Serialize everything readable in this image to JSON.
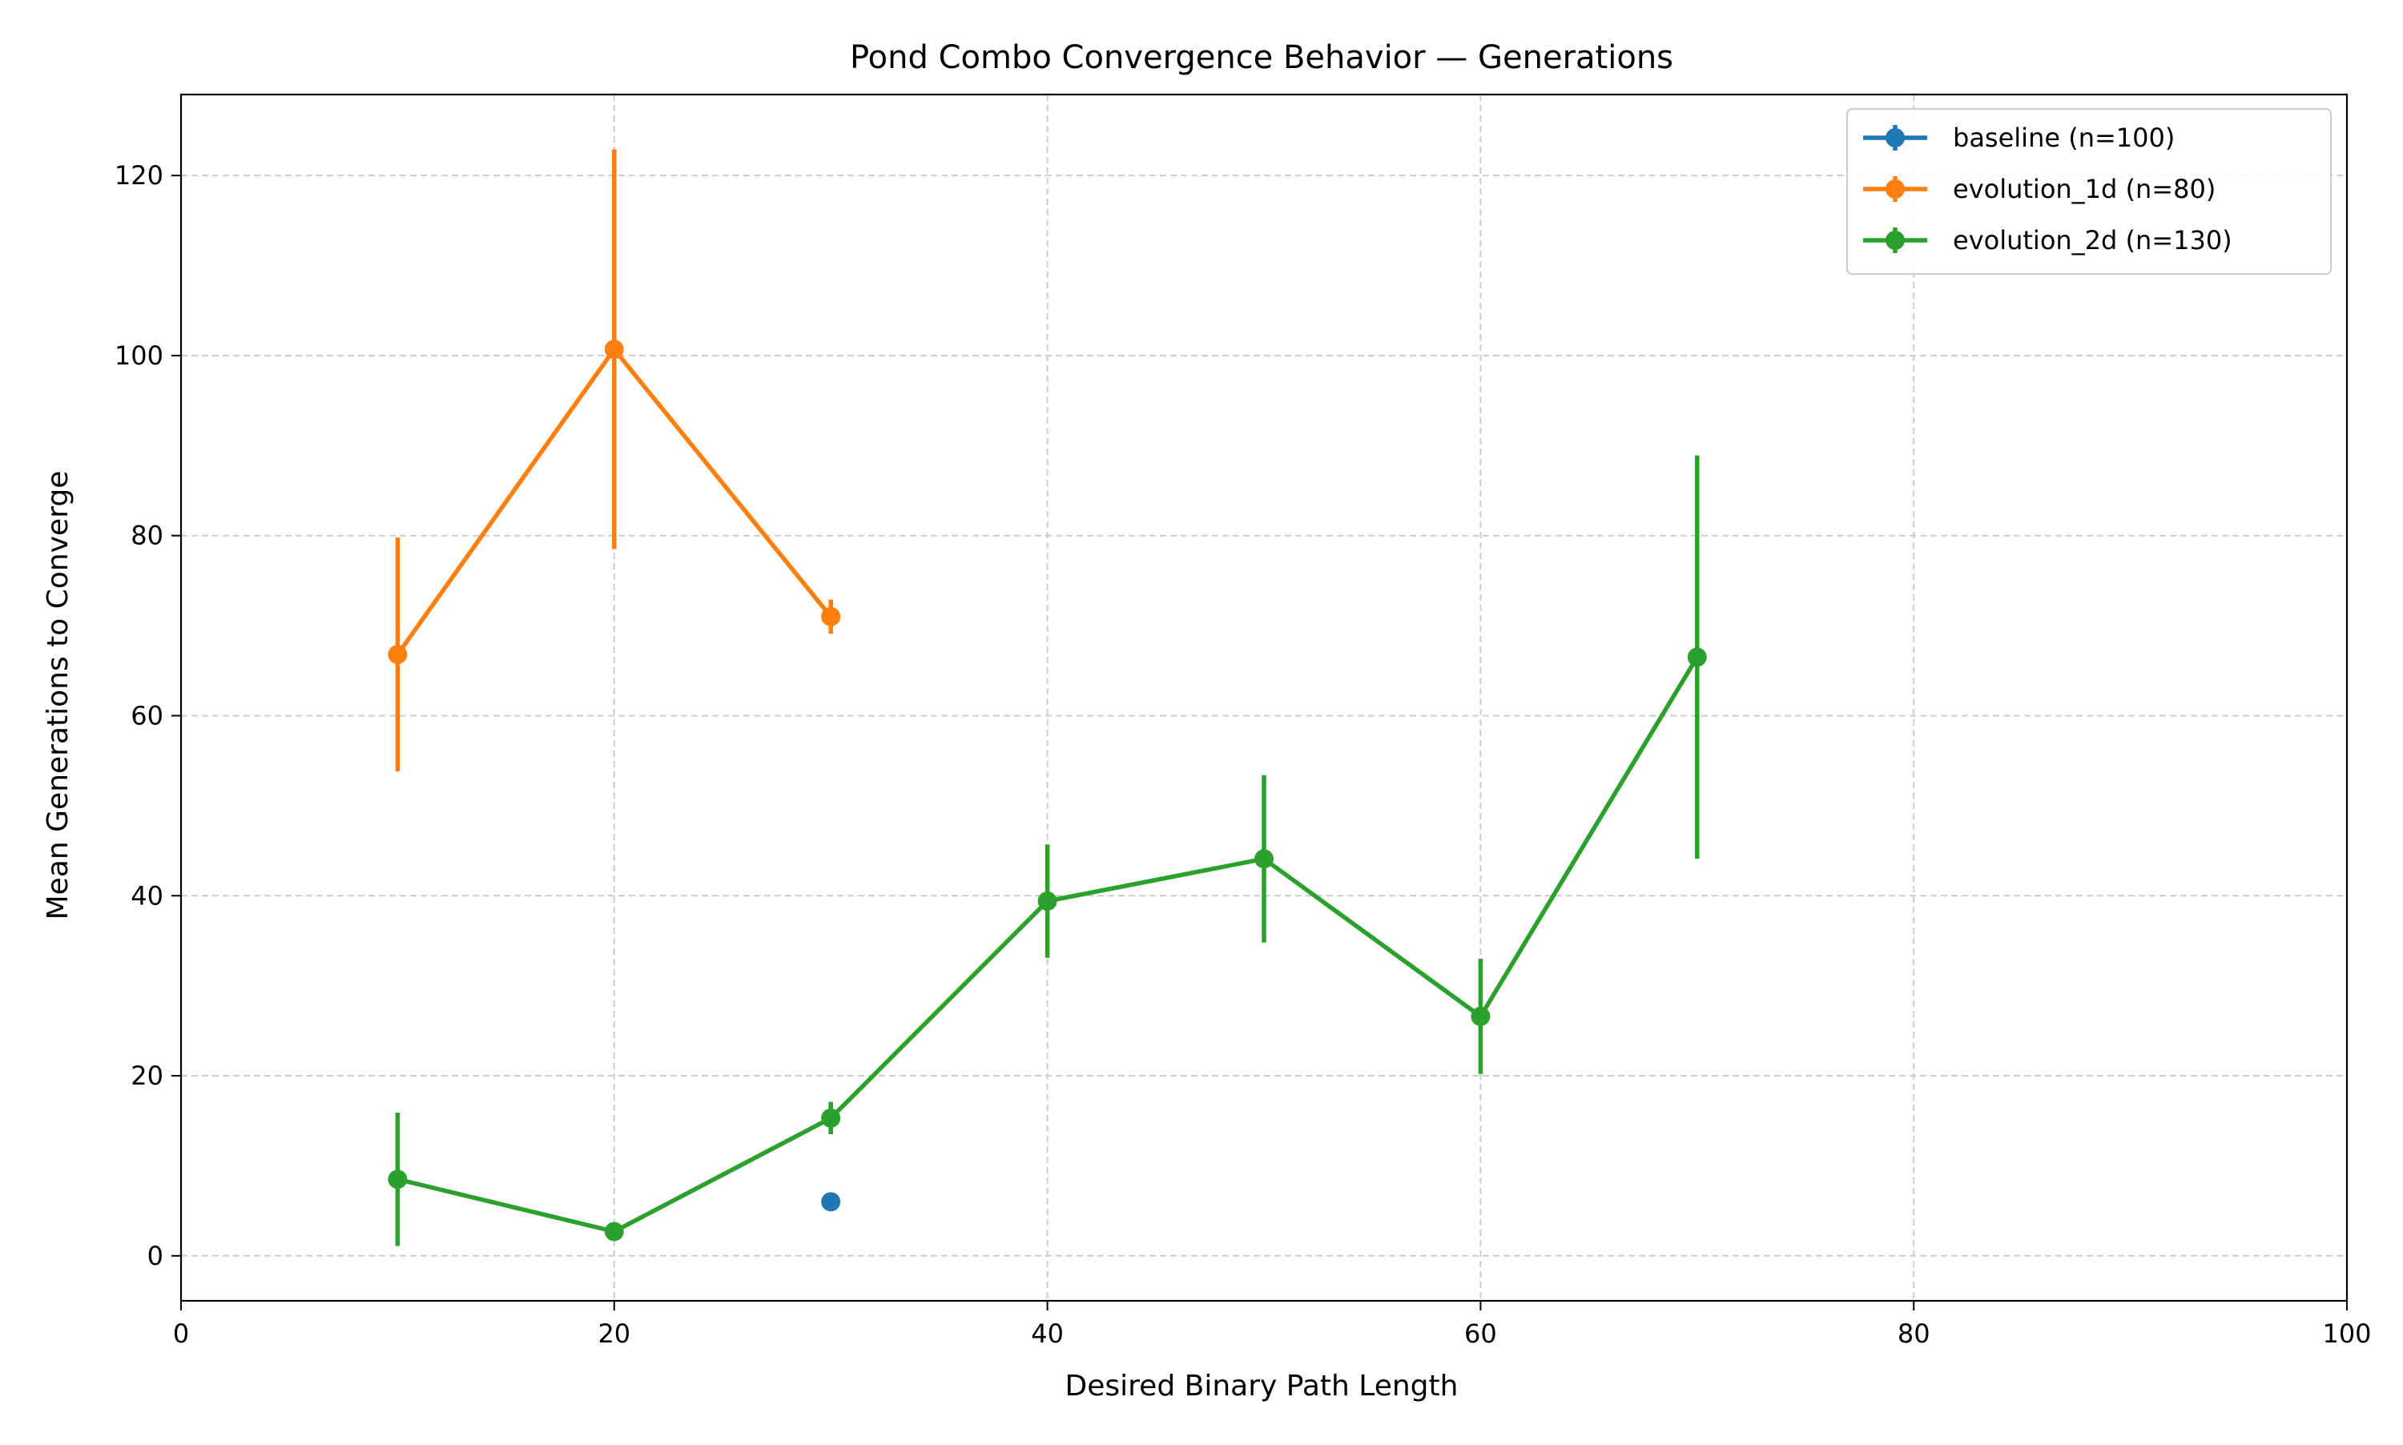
{
  "chart_data": {
    "type": "line",
    "title": "Pond Combo Convergence Behavior — Generations",
    "xlabel": "Desired Binary Path Length",
    "ylabel": "Mean Generations to Converge",
    "xlim": [
      0,
      100
    ],
    "ylim": [
      -5,
      129
    ],
    "x_ticks": [
      0,
      20,
      40,
      60,
      80,
      100
    ],
    "y_ticks": [
      0,
      20,
      40,
      60,
      80,
      100,
      120
    ],
    "grid": true,
    "legend_position": "top-right",
    "series": [
      {
        "name": "baseline (n=100)",
        "color": "#1f77b4",
        "points": [
          {
            "x": 30,
            "y": 6,
            "err": 0
          }
        ]
      },
      {
        "name": "evolution_1d (n=80)",
        "color": "#ff7f0e",
        "points": [
          {
            "x": 10,
            "y": 66.8,
            "err": 13
          },
          {
            "x": 20,
            "y": 100.7,
            "err": 22.2
          },
          {
            "x": 30,
            "y": 71,
            "err": 1.9
          }
        ]
      },
      {
        "name": "evolution_2d (n=130)",
        "color": "#2ca02c",
        "points": [
          {
            "x": 10,
            "y": 8.5,
            "err": 7.4
          },
          {
            "x": 20,
            "y": 2.7,
            "err": 0
          },
          {
            "x": 30,
            "y": 15.3,
            "err": 1.8
          },
          {
            "x": 40,
            "y": 39.4,
            "err": 6.3
          },
          {
            "x": 50,
            "y": 44.1,
            "err": 9.3
          },
          {
            "x": 60,
            "y": 26.6,
            "err": 6.4
          },
          {
            "x": 70,
            "y": 66.5,
            "err": 22.4
          }
        ]
      }
    ]
  }
}
